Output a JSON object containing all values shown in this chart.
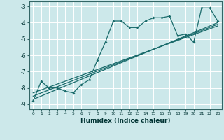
{
  "xlabel": "Humidex (Indice chaleur)",
  "xlim": [
    -0.5,
    23.5
  ],
  "ylim": [
    -9.3,
    -2.7
  ],
  "yticks": [
    -9,
    -8,
    -7,
    -6,
    -5,
    -4,
    -3
  ],
  "xticks": [
    0,
    1,
    2,
    3,
    4,
    5,
    6,
    7,
    8,
    9,
    10,
    11,
    12,
    13,
    14,
    15,
    16,
    17,
    18,
    19,
    20,
    21,
    22,
    23
  ],
  "bg_color": "#cce8ea",
  "grid_color": "#ffffff",
  "line_color": "#1a6b6b",
  "line1_x": [
    0,
    1,
    2,
    3,
    4,
    5,
    6,
    7,
    8,
    9,
    10,
    11,
    12,
    13,
    14,
    15,
    16,
    17,
    18,
    19,
    20,
    21,
    22,
    23
  ],
  "line1_y": [
    -8.8,
    -7.6,
    -8.0,
    -8.0,
    -8.2,
    -8.3,
    -7.8,
    -7.5,
    -6.3,
    -5.2,
    -3.9,
    -3.9,
    -4.3,
    -4.3,
    -3.9,
    -3.7,
    -3.7,
    -3.6,
    -4.8,
    -4.7,
    -5.2,
    -3.1,
    -3.1,
    -3.9
  ],
  "line2_x": [
    0,
    23
  ],
  "line2_y": [
    -8.7,
    -4.0
  ],
  "line3_x": [
    0,
    23
  ],
  "line3_y": [
    -8.5,
    -4.1
  ],
  "line4_x": [
    0,
    23
  ],
  "line4_y": [
    -8.3,
    -4.2
  ]
}
